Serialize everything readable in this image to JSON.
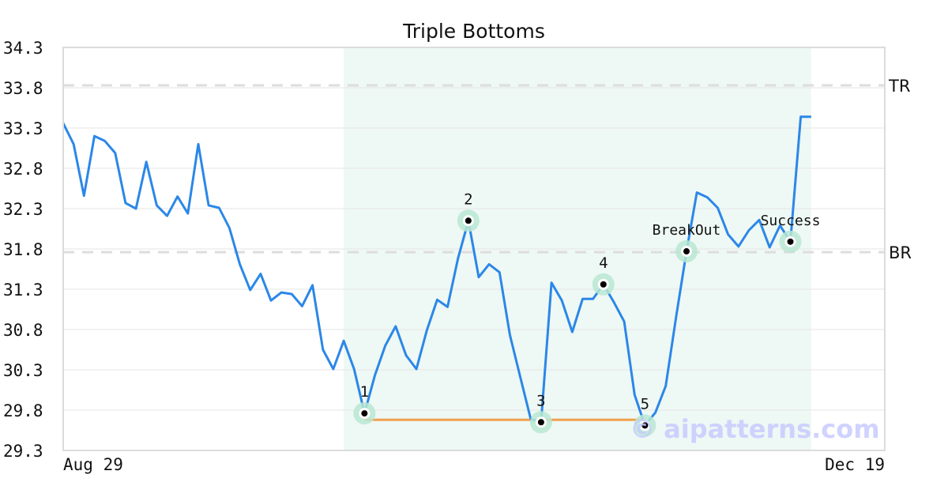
{
  "chart_data": {
    "type": "line",
    "title": "Triple Bottoms",
    "xlabel": "",
    "ylabel": "",
    "x_tick_labels": [
      "Aug 29",
      "Dec 19"
    ],
    "ylim": [
      29.3,
      34.3
    ],
    "y_ticks": [
      29.3,
      29.8,
      30.3,
      30.8,
      31.3,
      31.8,
      32.3,
      32.8,
      33.3,
      33.8,
      34.3
    ],
    "grid": true,
    "values": [
      33.36,
      33.1,
      32.46,
      33.2,
      33.14,
      32.99,
      32.37,
      32.3,
      32.88,
      32.34,
      32.21,
      32.45,
      32.24,
      33.1,
      32.34,
      32.31,
      32.06,
      31.61,
      31.29,
      31.49,
      31.16,
      31.26,
      31.24,
      31.09,
      31.35,
      30.55,
      30.31,
      30.66,
      30.31,
      29.76,
      30.23,
      30.6,
      30.84,
      30.48,
      30.31,
      30.79,
      31.17,
      31.08,
      31.68,
      32.15,
      31.45,
      31.61,
      31.51,
      30.73,
      30.21,
      29.69,
      29.65,
      31.38,
      31.16,
      30.77,
      31.18,
      31.18,
      31.36,
      31.14,
      30.9,
      29.99,
      29.61,
      29.77,
      30.1,
      30.96,
      31.77,
      32.5,
      32.44,
      32.31,
      31.98,
      31.83,
      32.03,
      32.16,
      31.82,
      32.09,
      31.89,
      33.44,
      33.44
    ],
    "pattern_region": {
      "start_index": 27,
      "end_index": 72
    },
    "reference_lines": [
      {
        "label": "TR",
        "value": 33.83
      },
      {
        "label": "BR",
        "value": 31.76
      }
    ],
    "support_line": {
      "value": 29.68,
      "start_index": 29,
      "end_index": 56
    },
    "markers": [
      {
        "label": "1",
        "index": 29
      },
      {
        "label": "2",
        "index": 39
      },
      {
        "label": "3",
        "index": 46
      },
      {
        "label": "4",
        "index": 52
      },
      {
        "label": "5",
        "index": 56
      },
      {
        "label": "BreakOut",
        "index": 60
      },
      {
        "label": "Success",
        "index": 70
      }
    ],
    "colors": {
      "line": "#2b87e8",
      "region": "#eef8f4",
      "marker_halo": "#b8e8d2",
      "support": "#f0a050",
      "reference": "#dddddd"
    }
  },
  "watermark": "© aipatterns.com"
}
